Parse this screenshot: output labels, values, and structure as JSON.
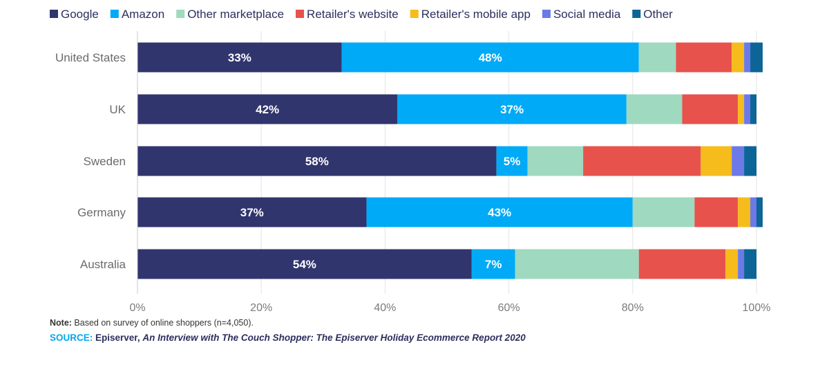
{
  "chart_data": {
    "type": "bar",
    "orientation": "horizontal",
    "stacked": true,
    "categories": [
      "United States",
      "UK",
      "Sweden",
      "Germany",
      "Australia"
    ],
    "series": [
      {
        "name": "Google",
        "color": "#31356e",
        "values": [
          33,
          42,
          58,
          37,
          54
        ],
        "labels": [
          "33%",
          "42%",
          "58%",
          "37%",
          "54%"
        ]
      },
      {
        "name": "Amazon",
        "color": "#00aaf6",
        "values": [
          48,
          37,
          5,
          43,
          7
        ],
        "labels": [
          "48%",
          "37%",
          "5%",
          "43%",
          "7%"
        ]
      },
      {
        "name": "Other marketplace",
        "color": "#9fd9c0",
        "values": [
          6,
          9,
          9,
          10,
          20
        ]
      },
      {
        "name": "Retailer's website",
        "color": "#e8524c",
        "values": [
          9,
          9,
          19,
          7,
          14
        ]
      },
      {
        "name": "Retailer's mobile app",
        "color": "#f5bc1c",
        "values": [
          2,
          1,
          5,
          2,
          2
        ]
      },
      {
        "name": "Social media",
        "color": "#6b7ae6",
        "values": [
          1,
          1,
          2,
          1,
          1
        ]
      },
      {
        "name": "Other",
        "color": "#0c6596",
        "values": [
          2,
          1,
          2,
          1,
          2
        ]
      }
    ],
    "xlim": [
      0,
      100
    ],
    "xticks": [
      "0%",
      "20%",
      "40%",
      "60%",
      "80%",
      "100%"
    ],
    "grid": true,
    "legend_position": "top"
  },
  "footer": {
    "note_label": "Note:",
    "note_text": " Based on survey of online shoppers (n=4,050).",
    "source_label": "SOURCE:",
    "source_org": " Episerver, ",
    "source_title": "An Interview with The Couch Shopper: The Episerver Holiday Ecommerce Report 2020"
  }
}
